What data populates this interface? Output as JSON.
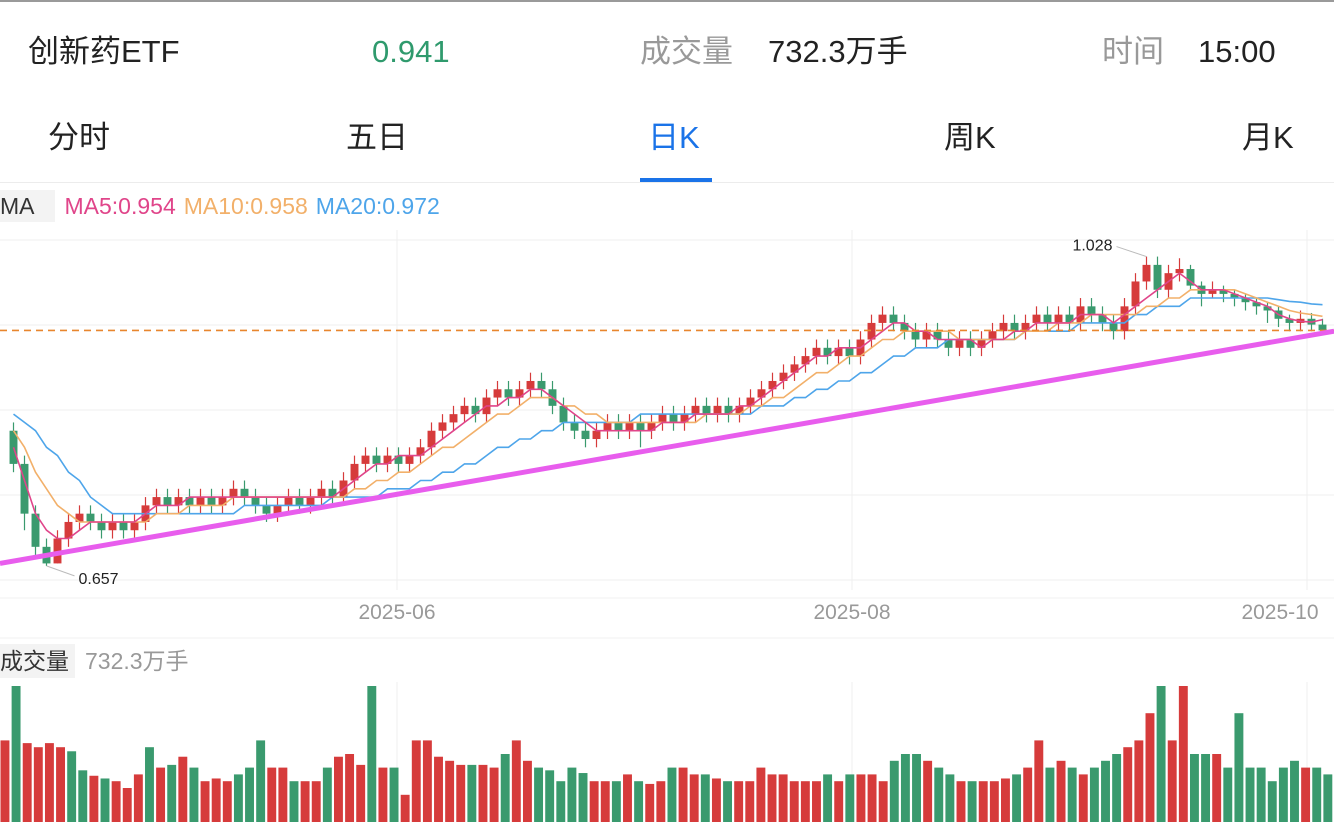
{
  "header": {
    "name": "创新药ETF",
    "price": "0.941",
    "volume_label": "成交量",
    "volume_value": "732.3万手",
    "time_label": "时间",
    "time_value": "15:00"
  },
  "tabs": [
    {
      "label": "分时",
      "active": false
    },
    {
      "label": "五日",
      "active": false
    },
    {
      "label": "日K",
      "active": true
    },
    {
      "label": "周K",
      "active": false
    },
    {
      "label": "月K",
      "active": false
    }
  ],
  "ma_legend": {
    "tag": "MA",
    "ma5": "MA5:0.954",
    "ma10": "MA10:0.958",
    "ma20": "MA20:0.972"
  },
  "volume_legend": {
    "tag": "成交量",
    "value": "732.3万手"
  },
  "colors": {
    "up": "#d63b3b",
    "down": "#3a9a6e",
    "price_green": "#2f9a6d",
    "ma5": "#e0458a",
    "ma10": "#f2b06a",
    "ma20": "#4ea5ea",
    "trendline": "#e85ded",
    "ref_line": "#e8862e",
    "active_tab": "#1a73e8"
  },
  "chart_data": [
    {
      "type": "candlestick",
      "x_ticks": [
        "2025-06",
        "2025-08",
        "2025-10"
      ],
      "annotations": [
        {
          "label": "1.028",
          "value": 1.028
        },
        {
          "label": "0.657",
          "value": 0.657
        }
      ],
      "reference_line": 0.941,
      "y_range": [
        0.64,
        1.05
      ],
      "grid": true,
      "candles": [
        [
          0.82,
          0.78,
          0.83,
          0.77
        ],
        [
          0.78,
          0.72,
          0.79,
          0.7
        ],
        [
          0.72,
          0.68,
          0.73,
          0.67
        ],
        [
          0.68,
          0.66,
          0.69,
          0.657
        ],
        [
          0.66,
          0.69,
          0.7,
          0.66
        ],
        [
          0.69,
          0.71,
          0.72,
          0.68
        ],
        [
          0.71,
          0.72,
          0.73,
          0.7
        ],
        [
          0.72,
          0.71,
          0.73,
          0.7
        ],
        [
          0.71,
          0.7,
          0.72,
          0.69
        ],
        [
          0.7,
          0.71,
          0.72,
          0.69
        ],
        [
          0.71,
          0.7,
          0.72,
          0.69
        ],
        [
          0.7,
          0.71,
          0.72,
          0.69
        ],
        [
          0.71,
          0.73,
          0.74,
          0.7
        ],
        [
          0.73,
          0.74,
          0.75,
          0.72
        ],
        [
          0.74,
          0.73,
          0.75,
          0.72
        ],
        [
          0.73,
          0.74,
          0.75,
          0.72
        ],
        [
          0.74,
          0.73,
          0.75,
          0.72
        ],
        [
          0.73,
          0.74,
          0.75,
          0.72
        ],
        [
          0.74,
          0.73,
          0.75,
          0.72
        ],
        [
          0.73,
          0.74,
          0.75,
          0.72
        ],
        [
          0.74,
          0.75,
          0.76,
          0.73
        ],
        [
          0.75,
          0.74,
          0.76,
          0.73
        ],
        [
          0.74,
          0.73,
          0.75,
          0.72
        ],
        [
          0.73,
          0.72,
          0.74,
          0.71
        ],
        [
          0.72,
          0.73,
          0.74,
          0.71
        ],
        [
          0.73,
          0.74,
          0.75,
          0.72
        ],
        [
          0.74,
          0.73,
          0.75,
          0.72
        ],
        [
          0.73,
          0.74,
          0.75,
          0.72
        ],
        [
          0.74,
          0.75,
          0.76,
          0.73
        ],
        [
          0.75,
          0.74,
          0.76,
          0.73
        ],
        [
          0.74,
          0.76,
          0.77,
          0.73
        ],
        [
          0.76,
          0.78,
          0.79,
          0.75
        ],
        [
          0.78,
          0.79,
          0.8,
          0.77
        ],
        [
          0.79,
          0.78,
          0.8,
          0.77
        ],
        [
          0.78,
          0.79,
          0.8,
          0.77
        ],
        [
          0.79,
          0.78,
          0.8,
          0.77
        ],
        [
          0.78,
          0.79,
          0.8,
          0.77
        ],
        [
          0.79,
          0.8,
          0.81,
          0.78
        ],
        [
          0.8,
          0.82,
          0.83,
          0.79
        ],
        [
          0.82,
          0.83,
          0.84,
          0.81
        ],
        [
          0.83,
          0.84,
          0.85,
          0.82
        ],
        [
          0.84,
          0.85,
          0.86,
          0.83
        ],
        [
          0.85,
          0.84,
          0.86,
          0.83
        ],
        [
          0.84,
          0.86,
          0.87,
          0.83
        ],
        [
          0.86,
          0.87,
          0.88,
          0.85
        ],
        [
          0.87,
          0.86,
          0.88,
          0.85
        ],
        [
          0.86,
          0.87,
          0.88,
          0.85
        ],
        [
          0.87,
          0.88,
          0.89,
          0.86
        ],
        [
          0.88,
          0.87,
          0.89,
          0.86
        ],
        [
          0.87,
          0.85,
          0.88,
          0.84
        ],
        [
          0.85,
          0.83,
          0.86,
          0.82
        ],
        [
          0.83,
          0.82,
          0.84,
          0.81
        ],
        [
          0.82,
          0.81,
          0.83,
          0.8
        ],
        [
          0.81,
          0.82,
          0.83,
          0.8
        ],
        [
          0.82,
          0.83,
          0.84,
          0.81
        ],
        [
          0.83,
          0.82,
          0.84,
          0.81
        ],
        [
          0.82,
          0.83,
          0.84,
          0.81
        ],
        [
          0.83,
          0.82,
          0.84,
          0.8
        ],
        [
          0.82,
          0.83,
          0.84,
          0.81
        ],
        [
          0.83,
          0.84,
          0.85,
          0.82
        ],
        [
          0.84,
          0.83,
          0.85,
          0.82
        ],
        [
          0.83,
          0.84,
          0.85,
          0.82
        ],
        [
          0.84,
          0.85,
          0.86,
          0.83
        ],
        [
          0.85,
          0.84,
          0.86,
          0.83
        ],
        [
          0.84,
          0.85,
          0.86,
          0.83
        ],
        [
          0.85,
          0.84,
          0.86,
          0.83
        ],
        [
          0.84,
          0.85,
          0.86,
          0.83
        ],
        [
          0.85,
          0.86,
          0.87,
          0.84
        ],
        [
          0.86,
          0.87,
          0.88,
          0.85
        ],
        [
          0.87,
          0.88,
          0.89,
          0.86
        ],
        [
          0.88,
          0.89,
          0.9,
          0.87
        ],
        [
          0.89,
          0.9,
          0.91,
          0.88
        ],
        [
          0.9,
          0.91,
          0.92,
          0.89
        ],
        [
          0.91,
          0.92,
          0.93,
          0.9
        ],
        [
          0.92,
          0.91,
          0.93,
          0.9
        ],
        [
          0.91,
          0.92,
          0.93,
          0.9
        ],
        [
          0.92,
          0.91,
          0.93,
          0.9
        ],
        [
          0.91,
          0.93,
          0.94,
          0.9
        ],
        [
          0.93,
          0.95,
          0.96,
          0.92
        ],
        [
          0.95,
          0.96,
          0.97,
          0.94
        ],
        [
          0.96,
          0.95,
          0.97,
          0.94
        ],
        [
          0.95,
          0.94,
          0.96,
          0.93
        ],
        [
          0.94,
          0.93,
          0.95,
          0.92
        ],
        [
          0.93,
          0.94,
          0.95,
          0.92
        ],
        [
          0.94,
          0.93,
          0.95,
          0.92
        ],
        [
          0.93,
          0.92,
          0.94,
          0.91
        ],
        [
          0.92,
          0.93,
          0.94,
          0.91
        ],
        [
          0.93,
          0.92,
          0.94,
          0.91
        ],
        [
          0.92,
          0.93,
          0.94,
          0.91
        ],
        [
          0.93,
          0.94,
          0.95,
          0.92
        ],
        [
          0.94,
          0.95,
          0.96,
          0.93
        ],
        [
          0.95,
          0.94,
          0.96,
          0.93
        ],
        [
          0.94,
          0.95,
          0.96,
          0.93
        ],
        [
          0.95,
          0.96,
          0.97,
          0.94
        ],
        [
          0.96,
          0.95,
          0.97,
          0.94
        ],
        [
          0.95,
          0.96,
          0.97,
          0.94
        ],
        [
          0.96,
          0.95,
          0.97,
          0.94
        ],
        [
          0.95,
          0.97,
          0.98,
          0.94
        ],
        [
          0.97,
          0.96,
          0.98,
          0.95
        ],
        [
          0.96,
          0.95,
          0.97,
          0.94
        ],
        [
          0.95,
          0.94,
          0.96,
          0.93
        ],
        [
          0.94,
          0.97,
          0.98,
          0.93
        ],
        [
          0.97,
          1.0,
          1.01,
          0.96
        ],
        [
          1.0,
          1.02,
          1.03,
          0.99
        ],
        [
          1.02,
          0.99,
          1.03,
          0.98
        ],
        [
          0.99,
          1.01,
          1.02,
          0.98
        ],
        [
          1.01,
          1.015,
          1.028,
          1.0
        ],
        [
          1.015,
          0.995,
          1.02,
          0.99
        ],
        [
          0.995,
          0.985,
          1.0,
          0.97
        ],
        [
          0.985,
          0.99,
          1.0,
          0.98
        ],
        [
          0.99,
          0.985,
          0.995,
          0.975
        ],
        [
          0.985,
          0.98,
          0.99,
          0.97
        ],
        [
          0.98,
          0.975,
          0.985,
          0.965
        ],
        [
          0.975,
          0.97,
          0.98,
          0.96
        ],
        [
          0.97,
          0.965,
          0.975,
          0.95
        ],
        [
          0.965,
          0.955,
          0.97,
          0.945
        ],
        [
          0.955,
          0.95,
          0.96,
          0.94
        ],
        [
          0.95,
          0.955,
          0.965,
          0.94
        ],
        [
          0.955,
          0.948,
          0.962,
          0.94
        ],
        [
          0.948,
          0.941,
          0.955,
          0.935
        ]
      ],
      "ma5": [
        0.8,
        0.76,
        0.72,
        0.7,
        0.69,
        0.69,
        0.7,
        0.71,
        0.71,
        0.71,
        0.71,
        0.71,
        0.72,
        0.73,
        0.73,
        0.73,
        0.74,
        0.74,
        0.74,
        0.74,
        0.74,
        0.74,
        0.74,
        0.74,
        0.74,
        0.74,
        0.74,
        0.74,
        0.74,
        0.74,
        0.75,
        0.76,
        0.77,
        0.78,
        0.78,
        0.79,
        0.79,
        0.79,
        0.8,
        0.81,
        0.82,
        0.83,
        0.84,
        0.85,
        0.85,
        0.86,
        0.86,
        0.87,
        0.87,
        0.86,
        0.85,
        0.84,
        0.83,
        0.82,
        0.82,
        0.82,
        0.82,
        0.82,
        0.82,
        0.83,
        0.83,
        0.83,
        0.84,
        0.84,
        0.84,
        0.84,
        0.85,
        0.85,
        0.86,
        0.87,
        0.88,
        0.89,
        0.9,
        0.91,
        0.91,
        0.92,
        0.92,
        0.92,
        0.93,
        0.94,
        0.95,
        0.95,
        0.94,
        0.94,
        0.93,
        0.93,
        0.93,
        0.93,
        0.92,
        0.93,
        0.93,
        0.94,
        0.94,
        0.95,
        0.95,
        0.95,
        0.95,
        0.96,
        0.96,
        0.96,
        0.95,
        0.96,
        0.97,
        0.98,
        0.99,
        1.0,
        1.01,
        1.0,
        0.99,
        0.99,
        0.99,
        0.985,
        0.98,
        0.975,
        0.97,
        0.96,
        0.955,
        0.952,
        0.951,
        0.954
      ],
      "ma10": [
        0.82,
        0.8,
        0.77,
        0.75,
        0.73,
        0.72,
        0.71,
        0.71,
        0.71,
        0.71,
        0.71,
        0.71,
        0.71,
        0.72,
        0.72,
        0.72,
        0.73,
        0.73,
        0.73,
        0.73,
        0.74,
        0.74,
        0.74,
        0.74,
        0.74,
        0.74,
        0.74,
        0.74,
        0.74,
        0.74,
        0.74,
        0.75,
        0.75,
        0.76,
        0.76,
        0.77,
        0.77,
        0.78,
        0.79,
        0.8,
        0.8,
        0.81,
        0.82,
        0.83,
        0.84,
        0.84,
        0.85,
        0.86,
        0.86,
        0.86,
        0.85,
        0.85,
        0.84,
        0.84,
        0.83,
        0.83,
        0.83,
        0.83,
        0.83,
        0.83,
        0.83,
        0.83,
        0.83,
        0.84,
        0.84,
        0.84,
        0.84,
        0.85,
        0.85,
        0.86,
        0.86,
        0.87,
        0.88,
        0.89,
        0.89,
        0.9,
        0.91,
        0.91,
        0.92,
        0.93,
        0.93,
        0.94,
        0.94,
        0.94,
        0.94,
        0.94,
        0.93,
        0.93,
        0.93,
        0.93,
        0.93,
        0.93,
        0.94,
        0.94,
        0.94,
        0.95,
        0.95,
        0.95,
        0.96,
        0.96,
        0.96,
        0.96,
        0.96,
        0.97,
        0.97,
        0.98,
        0.98,
        0.99,
        0.99,
        0.99,
        0.99,
        0.99,
        0.985,
        0.98,
        0.975,
        0.97,
        0.965,
        0.962,
        0.96,
        0.958
      ],
      "ma20": [
        0.84,
        0.83,
        0.82,
        0.8,
        0.79,
        0.77,
        0.76,
        0.74,
        0.73,
        0.72,
        0.72,
        0.72,
        0.72,
        0.72,
        0.72,
        0.72,
        0.72,
        0.72,
        0.72,
        0.72,
        0.72,
        0.73,
        0.73,
        0.73,
        0.73,
        0.73,
        0.73,
        0.73,
        0.73,
        0.74,
        0.74,
        0.74,
        0.74,
        0.74,
        0.75,
        0.75,
        0.75,
        0.76,
        0.76,
        0.77,
        0.77,
        0.78,
        0.78,
        0.79,
        0.8,
        0.8,
        0.81,
        0.81,
        0.82,
        0.82,
        0.83,
        0.83,
        0.83,
        0.83,
        0.83,
        0.83,
        0.83,
        0.84,
        0.84,
        0.84,
        0.84,
        0.84,
        0.84,
        0.84,
        0.84,
        0.84,
        0.84,
        0.84,
        0.85,
        0.85,
        0.85,
        0.86,
        0.86,
        0.87,
        0.87,
        0.88,
        0.88,
        0.89,
        0.89,
        0.9,
        0.91,
        0.91,
        0.92,
        0.92,
        0.92,
        0.93,
        0.93,
        0.93,
        0.93,
        0.93,
        0.93,
        0.93,
        0.94,
        0.94,
        0.94,
        0.94,
        0.94,
        0.95,
        0.95,
        0.95,
        0.95,
        0.95,
        0.96,
        0.96,
        0.97,
        0.97,
        0.97,
        0.98,
        0.98,
        0.98,
        0.98,
        0.98,
        0.98,
        0.98,
        0.98,
        0.978,
        0.976,
        0.975,
        0.973,
        0.972
      ],
      "trendline": [
        0.66,
        0.94
      ]
    },
    {
      "type": "bar",
      "series_name": "成交量",
      "values": [
        60,
        100,
        58,
        55,
        58,
        55,
        52,
        38,
        34,
        32,
        30,
        25,
        35,
        55,
        40,
        42,
        48,
        40,
        30,
        32,
        30,
        35,
        40,
        60,
        40,
        40,
        30,
        30,
        30,
        40,
        48,
        50,
        42,
        100,
        40,
        40,
        20,
        60,
        60,
        48,
        45,
        42,
        42,
        42,
        40,
        50,
        60,
        45,
        40,
        38,
        30,
        40,
        36,
        30,
        30,
        30,
        35,
        30,
        28,
        30,
        40,
        40,
        35,
        35,
        32,
        30,
        30,
        30,
        40,
        35,
        35,
        30,
        30,
        30,
        35,
        30,
        35,
        35,
        35,
        30,
        45,
        50,
        50,
        45,
        40,
        35,
        30,
        30,
        30,
        30,
        32,
        35,
        40,
        60,
        40,
        45,
        40,
        35,
        40,
        45,
        50,
        55,
        60,
        80,
        100,
        60,
        100,
        50,
        50,
        50,
        40,
        80,
        40,
        40,
        30,
        40,
        45,
        40,
        40,
        35
      ],
      "up_flags": [
        true,
        false,
        true,
        true,
        true,
        true,
        false,
        false,
        true,
        false,
        true,
        true,
        true,
        false,
        true,
        false,
        true,
        false,
        true,
        true,
        true,
        false,
        false,
        false,
        true,
        true,
        false,
        true,
        true,
        false,
        true,
        true,
        true,
        false,
        true,
        false,
        true,
        true,
        true,
        true,
        true,
        true,
        false,
        true,
        true,
        false,
        true,
        true,
        false,
        false,
        false,
        false,
        false,
        true,
        true,
        false,
        true,
        false,
        true,
        true,
        false,
        true,
        true,
        false,
        true,
        false,
        true,
        true,
        true,
        true,
        true,
        true,
        true,
        true,
        false,
        true,
        false,
        true,
        true,
        true,
        false,
        false,
        false,
        true,
        false,
        false,
        true,
        false,
        true,
        true,
        true,
        false,
        true,
        true,
        false,
        true,
        false,
        true,
        false,
        false,
        false,
        true,
        true,
        true,
        false,
        true,
        true,
        false,
        false,
        true,
        false,
        false,
        false,
        false,
        false,
        false,
        false,
        true,
        false,
        false
      ]
    }
  ]
}
